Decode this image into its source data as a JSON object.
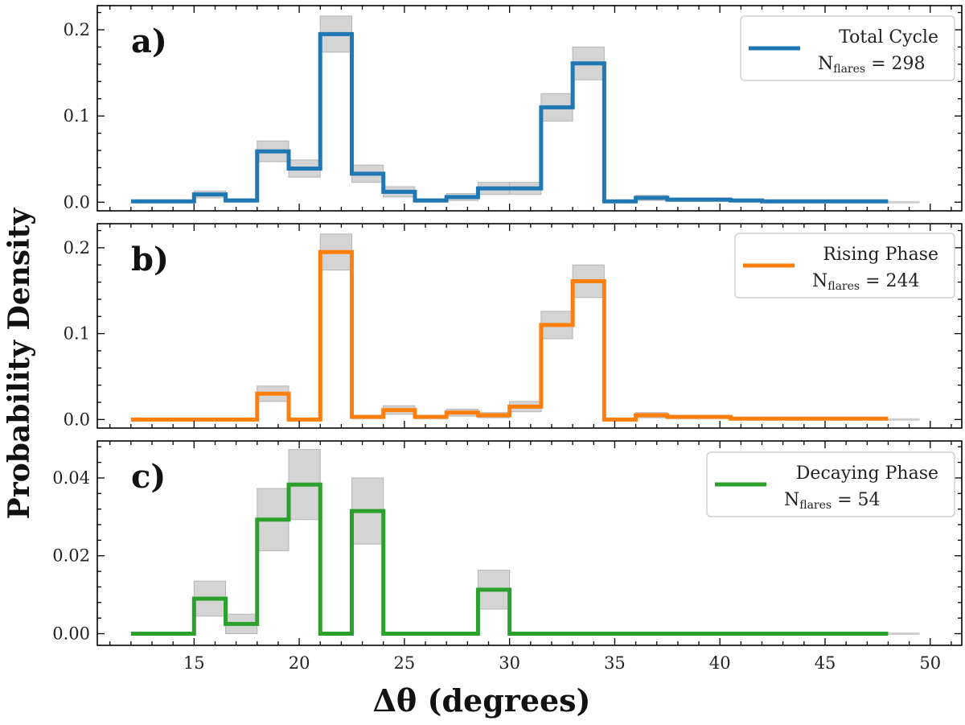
{
  "figure": {
    "ylabel": "Probability Density",
    "xlabel": "Δθ (degrees)",
    "x_ticks": [
      15,
      20,
      25,
      30,
      35,
      40,
      45,
      50
    ],
    "xlim": [
      10.4,
      51.5
    ]
  },
  "chart_data": [
    {
      "type": "step",
      "panel_label": "a)",
      "color": "#1f77b4",
      "legend": {
        "label": "Total Cycle",
        "n_main": "N",
        "n_sub": "flares",
        "n_rest": " = 298",
        "placement": "top-right"
      },
      "bin_edges": [
        12,
        13.5,
        15,
        16.5,
        18,
        19.5,
        21,
        22.5,
        24,
        25.5,
        27,
        28.5,
        30,
        31.5,
        33,
        34.5,
        36,
        37.5,
        39,
        40.5,
        42,
        43.5,
        45,
        46.5,
        48
      ],
      "values": [
        0.001,
        0.001,
        0.009,
        0.002,
        0.059,
        0.039,
        0.195,
        0.033,
        0.012,
        0.002,
        0.006,
        0.016,
        0.016,
        0.11,
        0.161,
        0.001,
        0.005,
        0.003,
        0.003,
        0.002,
        0.001,
        0.001,
        0.001,
        0.001
      ],
      "err": [
        0.0,
        0.0,
        0.004,
        0.002,
        0.012,
        0.01,
        0.021,
        0.01,
        0.006,
        0.002,
        0.004,
        0.007,
        0.007,
        0.016,
        0.019,
        0.0,
        0.003,
        0.002,
        0.002,
        0.001,
        0.0,
        0.0,
        0.0,
        0.0
      ],
      "ylim": [
        -0.01,
        0.228
      ],
      "y_ticks": [
        0.0,
        0.1,
        0.2
      ],
      "y_tick_labels": [
        "0.0",
        "0.1",
        "0.2"
      ]
    },
    {
      "type": "step",
      "panel_label": "b)",
      "color": "#ff7f0e",
      "legend": {
        "label": "Rising Phase",
        "n_main": "N",
        "n_sub": "flares",
        "n_rest": " = 244",
        "placement": "top-right"
      },
      "bin_edges": [
        12,
        13.5,
        15,
        16.5,
        18,
        19.5,
        21,
        22.5,
        24,
        25.5,
        27,
        28.5,
        30,
        31.5,
        33,
        34.5,
        36,
        37.5,
        39,
        40.5,
        42,
        43.5,
        45,
        46.5,
        48
      ],
      "values": [
        0.0,
        0.0,
        0.0,
        0.0,
        0.03,
        0.0,
        0.195,
        0.003,
        0.011,
        0.003,
        0.008,
        0.005,
        0.015,
        0.11,
        0.161,
        0.0,
        0.005,
        0.003,
        0.003,
        0.001,
        0.001,
        0.001,
        0.001,
        0.001
      ],
      "err": [
        0.0,
        0.0,
        0.0,
        0.0,
        0.009,
        0.0,
        0.021,
        0.002,
        0.005,
        0.002,
        0.004,
        0.003,
        0.006,
        0.016,
        0.019,
        0.0,
        0.003,
        0.002,
        0.002,
        0.001,
        0.0,
        0.0,
        0.0,
        0.0
      ],
      "ylim": [
        -0.01,
        0.228
      ],
      "y_ticks": [
        0.0,
        0.1,
        0.2
      ],
      "y_tick_labels": [
        "0.0",
        "0.1",
        "0.2"
      ]
    },
    {
      "type": "step",
      "panel_label": "c)",
      "color": "#2ca02c",
      "legend": {
        "label": "Decaying Phase",
        "n_main": "N",
        "n_sub": "flares",
        "n_rest": " = 54",
        "placement": "top-right"
      },
      "bin_edges": [
        12,
        13.5,
        15,
        16.5,
        18,
        19.5,
        21,
        22.5,
        24,
        25.5,
        27,
        28.5,
        30,
        31.5,
        33,
        34.5,
        36,
        37.5,
        39,
        40.5,
        42,
        43.5,
        45,
        46.5,
        48
      ],
      "values": [
        0.0,
        0.0,
        0.009,
        0.0025,
        0.0293,
        0.0383,
        0.0,
        0.0315,
        0.0,
        0.0,
        0.0,
        0.0113,
        0.0,
        0.0,
        0.0,
        0.0,
        0.0,
        0.0,
        0.0,
        0.0,
        0.0,
        0.0,
        0.0,
        0.0
      ],
      "err": [
        0.0,
        0.0,
        0.0045,
        0.0025,
        0.008,
        0.009,
        0.0,
        0.0085,
        0.0,
        0.0,
        0.0,
        0.005,
        0.0,
        0.0,
        0.0,
        0.0,
        0.0,
        0.0,
        0.0,
        0.0,
        0.0,
        0.0,
        0.0,
        0.0
      ],
      "ylim": [
        -0.003,
        0.0495
      ],
      "y_ticks": [
        0.0,
        0.02,
        0.04
      ],
      "y_tick_labels": [
        "0.00",
        "0.02",
        "0.04"
      ]
    }
  ]
}
